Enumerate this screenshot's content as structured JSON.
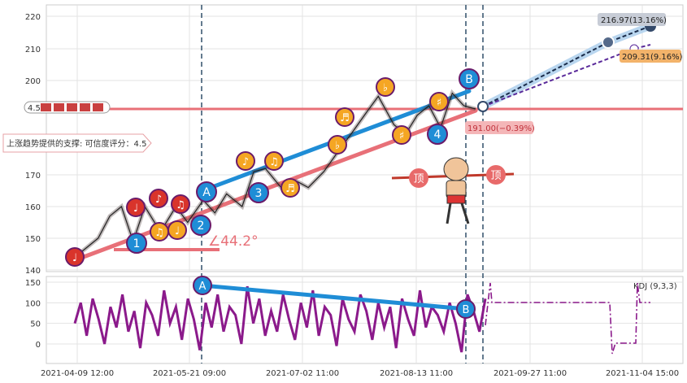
{
  "chart_data": [
    {
      "type": "line",
      "title": "",
      "xlabel": "",
      "ylabel": "",
      "ylim": [
        140,
        222
      ],
      "y_ticks": [
        "140",
        "150",
        "160",
        "170",
        "200",
        "210",
        "220"
      ],
      "x_ticks": [
        "2021-04-09 12:00",
        "2021-05-21 09:00",
        "2021-07-02 11:00",
        "2021-08-13 11:00",
        "2021-09-27 11:00",
        "2021-11-04 15:00"
      ],
      "grid": true,
      "price_series": [
        {
          "x": 0,
          "y": 144
        },
        {
          "x": 6,
          "y": 150
        },
        {
          "x": 9,
          "y": 157
        },
        {
          "x": 12,
          "y": 160
        },
        {
          "x": 15,
          "y": 149
        },
        {
          "x": 18,
          "y": 160
        },
        {
          "x": 22,
          "y": 152
        },
        {
          "x": 26,
          "y": 160
        },
        {
          "x": 29,
          "y": 155
        },
        {
          "x": 33,
          "y": 162
        },
        {
          "x": 36,
          "y": 158
        },
        {
          "x": 39,
          "y": 164
        },
        {
          "x": 43,
          "y": 160
        },
        {
          "x": 46,
          "y": 171
        },
        {
          "x": 49,
          "y": 172
        },
        {
          "x": 53,
          "y": 166
        },
        {
          "x": 57,
          "y": 168
        },
        {
          "x": 60,
          "y": 166
        },
        {
          "x": 64,
          "y": 171
        },
        {
          "x": 68,
          "y": 178
        },
        {
          "x": 71,
          "y": 183
        },
        {
          "x": 75,
          "y": 190
        },
        {
          "x": 78,
          "y": 195
        },
        {
          "x": 82,
          "y": 186
        },
        {
          "x": 85,
          "y": 183
        },
        {
          "x": 88,
          "y": 189
        },
        {
          "x": 91,
          "y": 192
        },
        {
          "x": 94,
          "y": 185
        },
        {
          "x": 97,
          "y": 196
        },
        {
          "x": 100,
          "y": 192
        },
        {
          "x": 103,
          "y": 191
        }
      ],
      "wave_points": [
        {
          "label": "1",
          "x": 15,
          "y": 149
        },
        {
          "label": "2",
          "x": 31,
          "y": 153
        },
        {
          "label": "3",
          "x": 45,
          "y": 163
        },
        {
          "label": "4",
          "x": 90,
          "y": 185
        },
        {
          "label": "A",
          "x": 31,
          "y": 161
        },
        {
          "label": "B",
          "x": 103,
          "y": 200
        }
      ],
      "support_level": 191,
      "support_level_label": "4.5",
      "support_note": "上涨趋势提供的支撑: 可信度评分：4.5",
      "angle_label": "∠44.2°",
      "current_label": "191.00(−0.39%)",
      "target_high_label": "216.97(13.16%)",
      "target_low_label": "209.31(9.16%)",
      "badge_text": "顶",
      "accent_colors": {
        "blue": "#1f8dd6",
        "red": "#e87078",
        "orange": "#f5a623",
        "dark_red": "#d9342b",
        "purple": "#8b1a8b",
        "navy": "#344a6b"
      }
    },
    {
      "type": "line",
      "title": "",
      "legend": "KDJ (9,3,3)",
      "ylim": [
        -25,
        160
      ],
      "y_ticks": [
        "0",
        "50",
        "100",
        "150"
      ],
      "line_A_label": "A",
      "line_B_label": "B"
    }
  ]
}
